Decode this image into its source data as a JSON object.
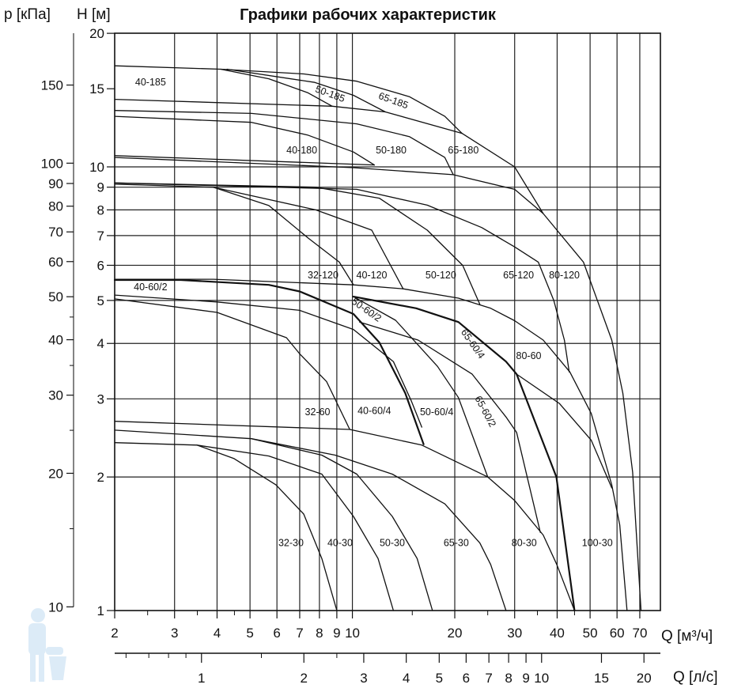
{
  "chart_data": {
    "type": "line",
    "title": "Графики рабочих характеристик",
    "xlabel": "Q [м³/ч]",
    "xlabel2": "Q [л/с]",
    "ylabel": "H [м]",
    "ylabel2": "p [кПа]",
    "xscale": "log",
    "yscale": "log",
    "xlim": [
      2,
      80
    ],
    "ylim": [
      1,
      20
    ],
    "grid": true,
    "x_ticks": [
      2,
      3,
      4,
      5,
      6,
      7,
      8,
      9,
      10,
      20,
      30,
      40,
      50,
      60,
      70
    ],
    "x_tick_labels": [
      "2",
      "3",
      "4",
      "5",
      "6",
      "7",
      "8",
      "9",
      "10",
      "20",
      "30",
      "40",
      "50",
      "60",
      "70"
    ],
    "x_minor_ticks": [
      2.5,
      3.5,
      4.5,
      15,
      25,
      35,
      45
    ],
    "x2_ticks": [
      1,
      2,
      3,
      4,
      5,
      6,
      7,
      8,
      9,
      10,
      15,
      20
    ],
    "x2_tick_labels": [
      "1",
      "2",
      "3",
      "4",
      "5",
      "6",
      "7",
      "8",
      "9",
      "10",
      "15",
      "20"
    ],
    "x2_minor_ticks": [
      0.6,
      0.7,
      0.8,
      0.9,
      1.5,
      2.5
    ],
    "y_ticks": [
      1,
      2,
      3,
      4,
      5,
      6,
      7,
      8,
      9,
      10,
      15,
      20
    ],
    "y_tick_labels": [
      "1",
      "2",
      "3",
      "4",
      "5",
      "6",
      "7",
      "8",
      "9",
      "10",
      "15",
      "20"
    ],
    "y_gridlines": [
      2,
      3,
      4,
      5,
      6,
      7,
      8,
      9,
      10
    ],
    "y2_ticks": [
      10,
      20,
      30,
      40,
      50,
      60,
      70,
      80,
      90,
      100,
      150
    ],
    "y2_tick_labels": [
      "10",
      "20",
      "30",
      "40",
      "50",
      "60",
      "70",
      "80",
      "90",
      "100",
      "150"
    ],
    "y2_minor_ticks": [
      15,
      25,
      35,
      45
    ],
    "line_color": "#111111",
    "grid_color": "#222222",
    "curves": [
      [
        [
          2,
          16.9
        ],
        [
          4.1,
          16.6
        ],
        [
          7.2,
          16.2
        ],
        [
          10.3,
          15.6
        ],
        [
          14.7,
          14.4
        ],
        [
          18.7,
          13.0
        ],
        [
          21,
          11.9
        ]
      ],
      [
        [
          4.1,
          16.6
        ],
        [
          5.68,
          15.8
        ],
        [
          7.38,
          14.7
        ],
        [
          8.72,
          13.7
        ]
      ],
      [
        [
          4.28,
          16.6
        ],
        [
          7.75,
          15.5
        ],
        [
          10.07,
          14.5
        ],
        [
          12.5,
          13.3
        ]
      ],
      [
        [
          2,
          14.2
        ],
        [
          8.72,
          13.7
        ],
        [
          12.5,
          13.3
        ],
        [
          21,
          11.9
        ]
      ],
      [
        [
          21,
          11.9
        ],
        [
          30,
          10.0
        ],
        [
          36.4,
          7.85
        ]
      ],
      [
        [
          2,
          13.4
        ],
        [
          5.05,
          13.2
        ],
        [
          10.3,
          12.5
        ],
        [
          14.7,
          11.7
        ],
        [
          18.7,
          10.5
        ],
        [
          19.8,
          9.6
        ]
      ],
      [
        [
          2,
          13.0
        ],
        [
          5.05,
          12.6
        ],
        [
          7.38,
          11.8
        ],
        [
          10.07,
          10.8
        ],
        [
          11.6,
          10.1
        ]
      ],
      [
        [
          2,
          10.6
        ],
        [
          11.6,
          10.1
        ]
      ],
      [
        [
          2,
          10.5
        ],
        [
          10.07,
          9.96
        ],
        [
          19.8,
          9.6
        ],
        [
          30,
          8.9
        ],
        [
          36.4,
          7.85
        ],
        [
          47.8,
          6.1
        ],
        [
          57.9,
          4.07
        ],
        [
          62.4,
          3.09
        ],
        [
          66.7,
          2.05
        ],
        [
          70.6,
          1.0
        ]
      ],
      [
        [
          2,
          9.14
        ],
        [
          3.9,
          9.0
        ],
        [
          5.68,
          8.18
        ],
        [
          7.43,
          6.9
        ],
        [
          9.15,
          6.1
        ],
        [
          10.07,
          5.42
        ]
      ],
      [
        [
          3.9,
          9.0
        ],
        [
          7.8,
          8.0
        ],
        [
          11.4,
          7.2
        ],
        [
          14.1,
          5.31
        ]
      ],
      [
        [
          2,
          9.2
        ],
        [
          7.8,
          9.0
        ],
        [
          12.0,
          8.5
        ],
        [
          16.6,
          7.2
        ],
        [
          21.1,
          6.0
        ],
        [
          23.7,
          4.9
        ]
      ],
      [
        [
          2,
          9.2
        ],
        [
          10.3,
          8.9
        ],
        [
          16.6,
          8.2
        ],
        [
          24,
          7.3
        ],
        [
          30,
          6.6
        ],
        [
          35.2,
          6.1
        ],
        [
          39.1,
          5.0
        ],
        [
          42,
          4.07
        ],
        [
          43.4,
          3.45
        ]
      ],
      [
        [
          2,
          5.58
        ],
        [
          3.9,
          5.58
        ],
        [
          10.07,
          5.42
        ],
        [
          14.1,
          5.31
        ],
        [
          20.5,
          5.06
        ],
        [
          25.5,
          4.8
        ],
        [
          30,
          4.5
        ],
        [
          36.4,
          4.07
        ],
        [
          43.6,
          3.45
        ],
        [
          50.4,
          2.78
        ],
        [
          57.9,
          1.92
        ],
        [
          61.1,
          1.56
        ],
        [
          64.2,
          1.0
        ]
      ],
      [
        [
          2,
          5.56
        ],
        [
          3.13,
          5.56
        ],
        [
          5.68,
          5.42
        ],
        [
          7.0,
          5.24
        ],
        [
          10.07,
          4.66
        ],
        [
          12.0,
          4.02
        ],
        [
          14.3,
          3.09
        ],
        [
          16.2,
          2.37
        ]
      ],
      [
        [
          10.07,
          5.1
        ],
        [
          15.4,
          4.8
        ],
        [
          20.5,
          4.47
        ],
        [
          28.3,
          3.64
        ],
        [
          30.4,
          3.41
        ],
        [
          39.8,
          2.0
        ],
        [
          45,
          1.0
        ]
      ],
      [
        [
          10.07,
          5.1
        ],
        [
          13.4,
          4.51
        ],
        [
          17.8,
          3.55
        ],
        [
          20.5,
          3.02
        ],
        [
          25,
          2.0
        ]
      ],
      [
        [
          10.5,
          4.47
        ],
        [
          15.6,
          4.07
        ],
        [
          22.5,
          3.41
        ],
        [
          28.3,
          2.73
        ],
        [
          30.4,
          2.52
        ],
        [
          35.7,
          1.5
        ]
      ],
      [
        [
          2,
          5.14
        ],
        [
          4.0,
          4.96
        ],
        [
          7.0,
          4.75
        ],
        [
          10.07,
          4.3
        ],
        [
          13.2,
          3.64
        ],
        [
          14.9,
          2.97
        ],
        [
          16.0,
          2.59
        ]
      ],
      [
        [
          2,
          5.04
        ],
        [
          4.0,
          4.7
        ],
        [
          6.4,
          4.12
        ],
        [
          7.0,
          3.79
        ],
        [
          8.4,
          3.28
        ],
        [
          9.82,
          2.56
        ]
      ],
      [
        [
          30.4,
          3.41
        ],
        [
          40.6,
          2.93
        ],
        [
          50.4,
          2.42
        ],
        [
          57.9,
          1.89
        ]
      ],
      [
        [
          2,
          2.67
        ],
        [
          9.82,
          2.56
        ],
        [
          16.0,
          2.36
        ],
        [
          25.0,
          2.0
        ],
        [
          30,
          1.77
        ],
        [
          36.4,
          1.48
        ],
        [
          39.9,
          1.27
        ],
        [
          45,
          1.0
        ]
      ],
      [
        [
          2,
          2.55
        ],
        [
          5.05,
          2.44
        ],
        [
          8.13,
          2.24
        ],
        [
          10.3,
          2.03
        ],
        [
          13.1,
          1.63
        ],
        [
          15.5,
          1.31
        ],
        [
          17.2,
          1.0
        ]
      ],
      [
        [
          5.05,
          2.44
        ],
        [
          8.9,
          2.24
        ],
        [
          13.1,
          2.03
        ],
        [
          18.7,
          1.74
        ],
        [
          23.7,
          1.42
        ],
        [
          25.5,
          1.27
        ],
        [
          28.3,
          1.0
        ]
      ],
      [
        [
          2,
          2.39
        ],
        [
          3.49,
          2.36
        ],
        [
          4.49,
          2.2
        ],
        [
          5.96,
          1.92
        ],
        [
          7.19,
          1.65
        ],
        [
          8.13,
          1.31
        ],
        [
          9.0,
          1.0
        ]
      ],
      [
        [
          3.49,
          2.36
        ],
        [
          5.68,
          2.23
        ],
        [
          8.13,
          2.03
        ],
        [
          10.07,
          1.63
        ],
        [
          11.9,
          1.31
        ],
        [
          13.2,
          1.0
        ]
      ]
    ],
    "annotations": [
      {
        "text": "40-185",
        "Q": 2.55,
        "H": 15.5
      },
      {
        "text": "50-185",
        "Q": 8.6,
        "H": 14.6
      },
      {
        "text": "65-185",
        "Q": 13.2,
        "H": 14.1
      },
      {
        "text": "40-180",
        "Q": 7.1,
        "H": 10.9
      },
      {
        "text": "50-180",
        "Q": 13.0,
        "H": 10.9
      },
      {
        "text": "65-180",
        "Q": 21.2,
        "H": 10.9
      },
      {
        "text": "32-120",
        "Q": 8.2,
        "H": 5.7
      },
      {
        "text": "40-120",
        "Q": 11.4,
        "H": 5.7
      },
      {
        "text": "50-120",
        "Q": 18.2,
        "H": 5.7
      },
      {
        "text": "65-120",
        "Q": 30.8,
        "H": 5.7
      },
      {
        "text": "80-120",
        "Q": 42,
        "H": 5.7
      },
      {
        "text": "40-60/2",
        "Q": 2.55,
        "H": 5.36
      },
      {
        "text": "50-60/2",
        "Q": 11.0,
        "H": 4.76
      },
      {
        "text": "65-60/4",
        "Q": 22.6,
        "H": 3.99
      },
      {
        "text": "80-60",
        "Q": 33,
        "H": 3.75
      },
      {
        "text": "32-60",
        "Q": 7.9,
        "H": 2.8
      },
      {
        "text": "40-60/4",
        "Q": 11.6,
        "H": 2.82
      },
      {
        "text": "50-60/4",
        "Q": 17.7,
        "H": 2.8
      },
      {
        "text": "65-60/2",
        "Q": 24.6,
        "H": 2.81
      },
      {
        "text": "32-30",
        "Q": 6.6,
        "H": 1.42
      },
      {
        "text": "40-30",
        "Q": 9.2,
        "H": 1.42
      },
      {
        "text": "50-30",
        "Q": 13.1,
        "H": 1.42
      },
      {
        "text": "65-30",
        "Q": 20.2,
        "H": 1.42
      },
      {
        "text": "80-30",
        "Q": 32,
        "H": 1.42
      },
      {
        "text": "100-30",
        "Q": 52.5,
        "H": 1.42
      }
    ]
  }
}
